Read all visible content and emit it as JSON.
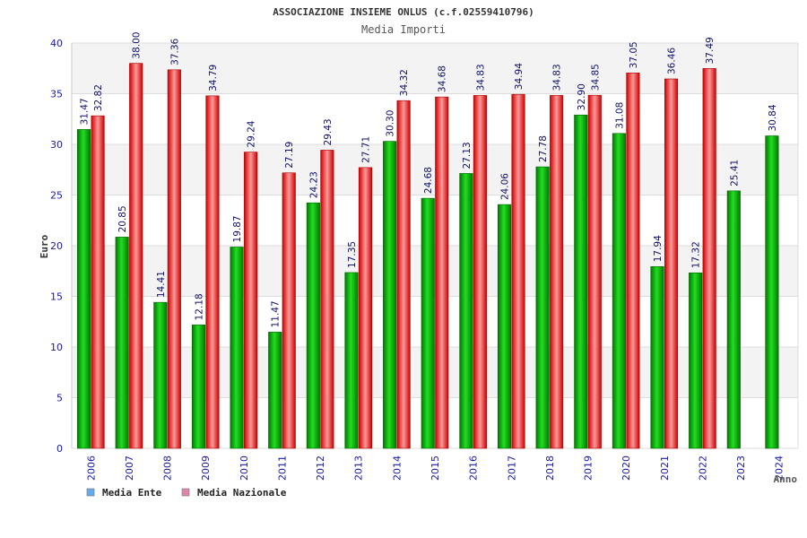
{
  "chart_data": {
    "type": "bar",
    "title": "ASSOCIAZIONE INSIEME ONLUS (c.f.02559410796)",
    "subtitle": "Media Importi",
    "ylabel": "Euro",
    "xlabel": "Anno",
    "ylim": [
      0,
      40
    ],
    "yticks": [
      0,
      5,
      10,
      15,
      20,
      25,
      30,
      35,
      40
    ],
    "grid": true,
    "legend_position": "bottom-left",
    "categories": [
      "2006",
      "2007",
      "2008",
      "2009",
      "2010",
      "2011",
      "2012",
      "2013",
      "2014",
      "2015",
      "2016",
      "2017",
      "2018",
      "2019",
      "2020",
      "2021",
      "2022",
      "2023",
      "2024"
    ],
    "series": [
      {
        "name": "Media Ente",
        "color": "#00b000",
        "legend_color": "#66aaee",
        "values": [
          31.47,
          20.85,
          14.41,
          12.18,
          19.87,
          11.47,
          24.23,
          17.35,
          30.3,
          24.68,
          27.13,
          24.06,
          27.78,
          32.9,
          31.08,
          17.94,
          17.32,
          25.41,
          30.84
        ],
        "labels": [
          "31.47",
          "20.85",
          "14.41",
          "12.18",
          "19.87",
          "11.47",
          "24.23",
          "17.35",
          "30.30",
          "24.68",
          "27.13",
          "24.06",
          "27.78",
          "32.90",
          "31.08",
          "17.94",
          "17.32",
          "25.41",
          "30.84"
        ]
      },
      {
        "name": "Media Nazionale",
        "color": "#ee2222",
        "legend_color": "#dd88aa",
        "values": [
          32.82,
          38.0,
          37.36,
          34.79,
          29.24,
          27.19,
          29.43,
          27.71,
          34.32,
          34.68,
          34.83,
          34.94,
          34.83,
          34.85,
          37.05,
          36.46,
          37.49,
          null,
          null
        ],
        "labels": [
          "32.82",
          "38.00",
          "37.36",
          "34.79",
          "29.24",
          "27.19",
          "29.43",
          "27.71",
          "34.32",
          "34.68",
          "34.83",
          "34.94",
          "34.83",
          "34.85",
          "37.05",
          "36.46",
          "37.49",
          null,
          null
        ]
      }
    ]
  }
}
